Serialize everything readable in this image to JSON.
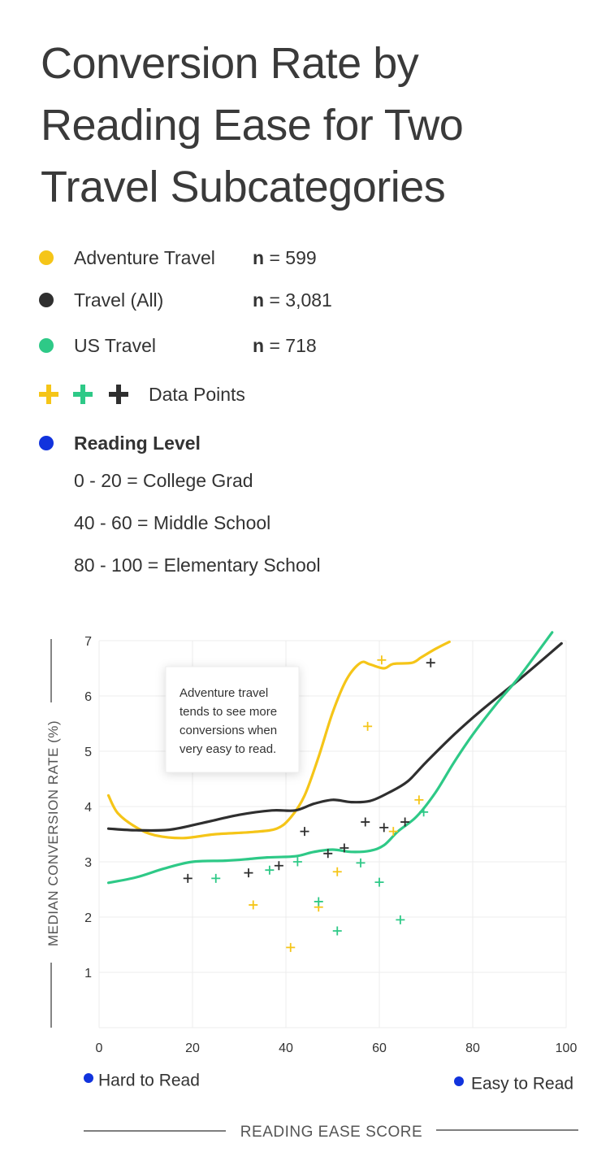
{
  "title": "Conversion Rate by Reading Ease for Two Travel Subcategories",
  "legend": {
    "series": [
      {
        "name": "Adventure Travel",
        "n_label": "n",
        "n_value": " = 599",
        "color": "#f5c518"
      },
      {
        "name": "Travel (All)",
        "n_label": "n",
        "n_value": " = 3,081",
        "color": "#2f2f2f"
      },
      {
        "name": "US Travel",
        "n_label": "n",
        "n_value": " = 718",
        "color": "#2ec987"
      }
    ],
    "data_points_label": "Data Points",
    "reading_level": {
      "title": "Reading Level",
      "color": "#1133dd",
      "levels": [
        "0 - 20 = College Grad",
        "40 - 60 = Middle School",
        "80 - 100 = Elementary School"
      ]
    }
  },
  "chart_data": {
    "type": "line",
    "xlabel": "READING EASE SCORE",
    "ylabel": "MEDIAN CONVERSION RATE (%)",
    "xlim": [
      0,
      100
    ],
    "ylim": [
      0,
      7
    ],
    "x_ticks": [
      0,
      20,
      40,
      60,
      80,
      100
    ],
    "y_ticks": [
      1,
      2,
      3,
      4,
      5,
      6,
      7
    ],
    "grid": true,
    "x_end_labels": {
      "left": "Hard to Read",
      "right": "Easy to Read",
      "color": "#1133dd"
    },
    "annotation": {
      "text": [
        "Adventure travel",
        "tends to see more",
        "conversions when",
        "very easy to read."
      ]
    },
    "series": [
      {
        "name": "Adventure Travel",
        "color": "#f5c518",
        "line": [
          [
            2,
            4.2
          ],
          [
            4,
            3.88
          ],
          [
            8,
            3.62
          ],
          [
            12,
            3.48
          ],
          [
            18,
            3.43
          ],
          [
            25,
            3.5
          ],
          [
            33,
            3.54
          ],
          [
            38,
            3.6
          ],
          [
            41,
            3.8
          ],
          [
            44,
            4.2
          ],
          [
            47,
            4.9
          ],
          [
            50,
            5.7
          ],
          [
            53,
            6.3
          ],
          [
            56,
            6.6
          ],
          [
            58,
            6.57
          ],
          [
            61,
            6.5
          ],
          [
            63,
            6.58
          ],
          [
            67,
            6.6
          ],
          [
            69,
            6.7
          ],
          [
            72,
            6.85
          ],
          [
            75,
            6.98
          ]
        ],
        "points": [
          [
            33,
            2.22
          ],
          [
            41,
            1.45
          ],
          [
            47,
            2.18
          ],
          [
            51,
            2.82
          ],
          [
            57.5,
            5.45
          ],
          [
            60.5,
            6.65
          ],
          [
            63,
            3.55
          ],
          [
            68.5,
            4.12
          ]
        ]
      },
      {
        "name": "Travel (All)",
        "color": "#2f2f2f",
        "line": [
          [
            2,
            3.6
          ],
          [
            8,
            3.57
          ],
          [
            15,
            3.58
          ],
          [
            22,
            3.7
          ],
          [
            30,
            3.85
          ],
          [
            37,
            3.93
          ],
          [
            42,
            3.93
          ],
          [
            46,
            4.05
          ],
          [
            50,
            4.12
          ],
          [
            54,
            4.08
          ],
          [
            58,
            4.1
          ],
          [
            62,
            4.25
          ],
          [
            66,
            4.45
          ],
          [
            70,
            4.8
          ],
          [
            76,
            5.3
          ],
          [
            82,
            5.75
          ],
          [
            90,
            6.3
          ],
          [
            99,
            6.95
          ]
        ],
        "points": [
          [
            19,
            2.7
          ],
          [
            32,
            2.8
          ],
          [
            38.5,
            2.93
          ],
          [
            44,
            3.55
          ],
          [
            49,
            3.15
          ],
          [
            52.5,
            3.25
          ],
          [
            57,
            3.72
          ],
          [
            61,
            3.62
          ],
          [
            65.5,
            3.72
          ],
          [
            71,
            6.6
          ]
        ]
      },
      {
        "name": "US Travel",
        "color": "#2ec987",
        "line": [
          [
            2,
            2.62
          ],
          [
            8,
            2.72
          ],
          [
            14,
            2.88
          ],
          [
            20,
            3.0
          ],
          [
            27,
            3.02
          ],
          [
            32,
            3.05
          ],
          [
            36,
            3.08
          ],
          [
            42,
            3.1
          ],
          [
            46,
            3.18
          ],
          [
            50,
            3.22
          ],
          [
            54,
            3.18
          ],
          [
            58,
            3.2
          ],
          [
            61,
            3.3
          ],
          [
            64,
            3.55
          ],
          [
            68,
            3.82
          ],
          [
            72,
            4.25
          ],
          [
            76,
            4.8
          ],
          [
            80,
            5.3
          ],
          [
            85,
            5.85
          ],
          [
            90,
            6.35
          ],
          [
            97,
            7.15
          ]
        ],
        "points": [
          [
            25,
            2.7
          ],
          [
            36.5,
            2.85
          ],
          [
            42.5,
            3.0
          ],
          [
            47,
            2.28
          ],
          [
            51,
            1.75
          ],
          [
            56,
            2.98
          ],
          [
            60,
            2.63
          ],
          [
            64.5,
            1.95
          ],
          [
            69.5,
            3.9
          ]
        ]
      }
    ]
  }
}
